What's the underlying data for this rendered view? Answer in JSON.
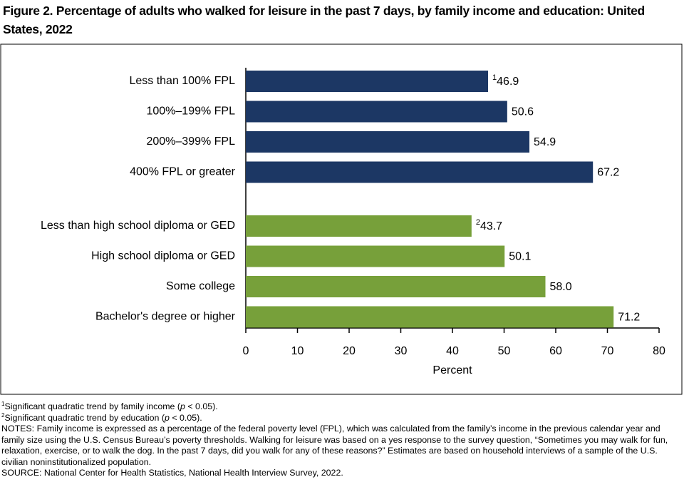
{
  "chart_data": {
    "type": "barh",
    "title": "Figure 2. Percentage of adults who walked for leisure in the past 7 days, by family income and education: United States, 2022",
    "xlabel": "Percent",
    "categories": [
      "Less than 100% FPL",
      "100%–199% FPL",
      "200%–399% FPL",
      "400% FPL or greater",
      "Less than high school diploma or GED",
      "High school diploma or GED",
      "Some college",
      "Bachelor's degree or higher"
    ],
    "series": [
      {
        "name": "Family income",
        "color": "#1c3764",
        "values": [
          46.9,
          50.6,
          54.9,
          67.2,
          null,
          null,
          null,
          null
        ],
        "value_labels": [
          "46.9",
          "50.6",
          "54.9",
          "67.2",
          null,
          null,
          null,
          null
        ],
        "footnote_marks": [
          "1",
          null,
          null,
          null,
          null,
          null,
          null,
          null
        ]
      },
      {
        "name": "Education",
        "color": "#77a03a",
        "values": [
          null,
          null,
          null,
          null,
          43.7,
          50.1,
          58.0,
          71.2
        ],
        "value_labels": [
          null,
          null,
          null,
          null,
          "43.7",
          "50.1",
          "58.0",
          "71.2"
        ],
        "footnote_marks": [
          null,
          null,
          null,
          null,
          "2",
          null,
          null,
          null
        ]
      }
    ],
    "xlim": [
      0,
      80
    ],
    "xticks": [
      0,
      10,
      20,
      30,
      40,
      50,
      60,
      70,
      80
    ],
    "notes": [
      {
        "mark": "1",
        "text": [
          "Significant quadratic trend by family income (",
          "p",
          " < 0.05)."
        ]
      },
      {
        "mark": "2",
        "text": [
          "Significant quadratic trend by education (",
          "p",
          " < 0.05)."
        ]
      }
    ],
    "notes_text": "NOTES: Family income is expressed as a percentage of the federal poverty level (FPL), which was calculated from the family’s income in the previous calendar year and family size using the U.S. Census Bureau’s poverty thresholds. Walking for leisure was based on a yes response to the survey question, “Sometimes you may walk for fun, relaxation, exercise, or to walk the dog. In the past 7 days, did you walk for any of these reasons?” Estimates are based on household interviews of a sample of the U.S. civilian noninstitutionalized population.",
    "source": "SOURCE: National Center for Health Statistics, National Health Interview Survey, 2022."
  }
}
